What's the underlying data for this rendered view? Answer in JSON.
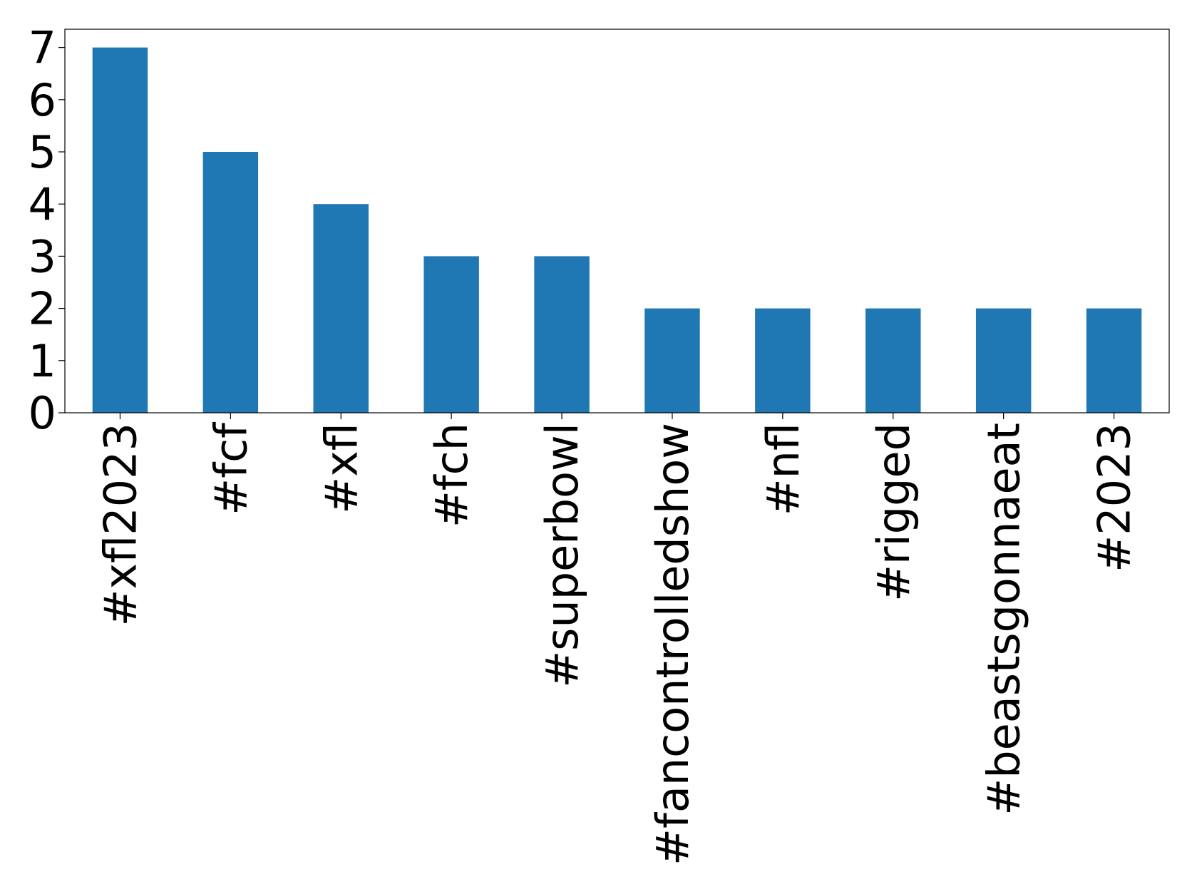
{
  "chart_data": {
    "type": "bar",
    "categories": [
      "#xfl2023",
      "#fcf",
      "#xfl",
      "#fch",
      "#superbowl",
      "#fancontrolledshow",
      "#nfl",
      "#rigged",
      "#beastsgonnaeat",
      "#2023"
    ],
    "values": [
      7,
      5,
      4,
      3,
      3,
      2,
      2,
      2,
      2,
      2
    ],
    "color": "#1f77b4",
    "ylim": [
      0,
      7.35
    ],
    "yticks": [
      0,
      1,
      2,
      3,
      4,
      5,
      6,
      7
    ],
    "grid": false
  }
}
